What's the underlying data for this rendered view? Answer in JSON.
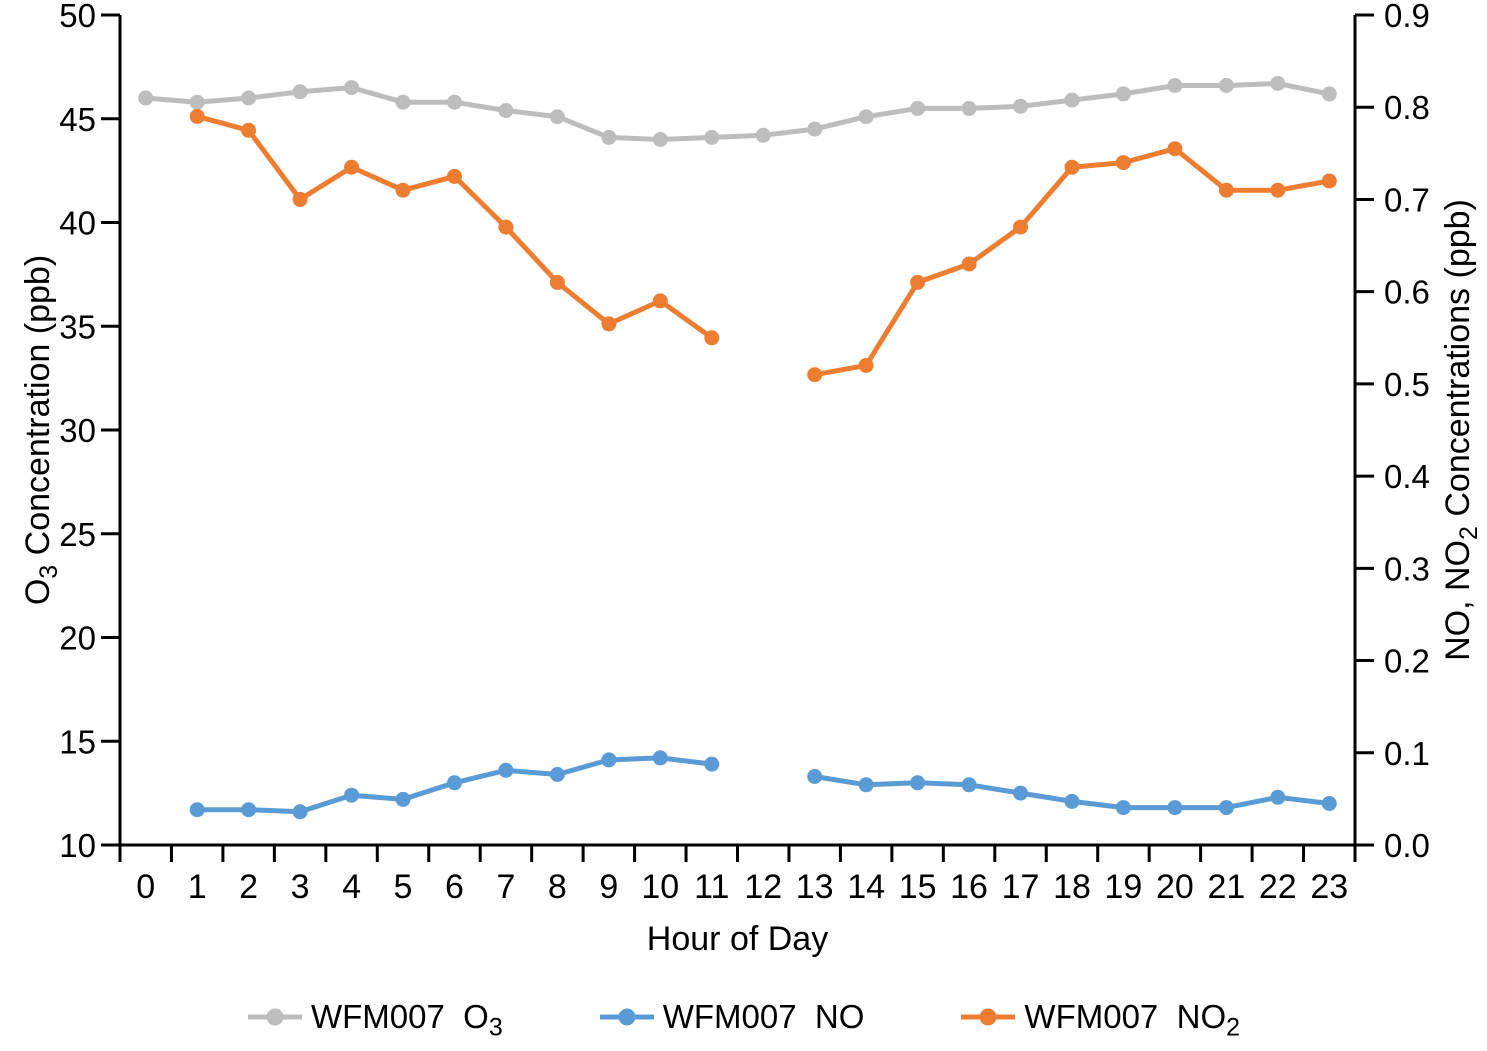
{
  "chart_data": {
    "type": "line",
    "title": "",
    "xlabel": "Hour of Day",
    "ylabel_left": {
      "pre": "O",
      "sub": "3",
      "post": " Concentration (ppb)"
    },
    "ylabel_right": {
      "pre": "NO, NO",
      "sub": "2",
      "post": " Concentrations (ppb)"
    },
    "x_categories": [
      "0",
      "1",
      "2",
      "3",
      "4",
      "5",
      "6",
      "7",
      "8",
      "9",
      "10",
      "11",
      "12",
      "13",
      "14",
      "15",
      "16",
      "17",
      "18",
      "19",
      "20",
      "21",
      "22",
      "23"
    ],
    "axes": {
      "left": {
        "min": 10,
        "max": 50,
        "ticks": [
          "10",
          "15",
          "20",
          "25",
          "30",
          "35",
          "40",
          "45",
          "50"
        ]
      },
      "right": {
        "min": 0,
        "max": 0.9,
        "ticks": [
          "0.0",
          "0.1",
          "0.2",
          "0.3",
          "0.4",
          "0.5",
          "0.6",
          "0.7",
          "0.8",
          "0.9"
        ]
      },
      "x_gridlines": false,
      "note": "NO and NO2 series have a data gap at hour 12"
    },
    "legend_position": "bottom",
    "series": [
      {
        "slug": "wfm007-o3",
        "label": {
          "pre": "WFM007  O",
          "sub": "3",
          "post": ""
        },
        "axis": "left",
        "color": "#BDBDBD",
        "points": [
          [
            0,
            46.0
          ],
          [
            1,
            45.8
          ],
          [
            2,
            46.0
          ],
          [
            3,
            46.3
          ],
          [
            4,
            46.5
          ],
          [
            5,
            45.8
          ],
          [
            6,
            45.8
          ],
          [
            7,
            45.4
          ],
          [
            8,
            45.1
          ],
          [
            9,
            44.1
          ],
          [
            10,
            44.0
          ],
          [
            11,
            44.1
          ],
          [
            12,
            44.2
          ],
          [
            13,
            44.5
          ],
          [
            14,
            45.1
          ],
          [
            15,
            45.5
          ],
          [
            16,
            45.5
          ],
          [
            17,
            45.6
          ],
          [
            18,
            45.9
          ],
          [
            19,
            46.2
          ],
          [
            20,
            46.6
          ],
          [
            21,
            46.6
          ],
          [
            22,
            46.7
          ],
          [
            23,
            46.2
          ]
        ]
      },
      {
        "slug": "wfm007-no",
        "label": {
          "pre": "WFM007  NO",
          "sub": "",
          "post": ""
        },
        "axis": "left",
        "color": "#5B9BD5",
        "points": [
          [
            1,
            11.7
          ],
          [
            2,
            11.7
          ],
          [
            3,
            11.6
          ],
          [
            4,
            12.4
          ],
          [
            5,
            12.2
          ],
          [
            6,
            13.0
          ],
          [
            7,
            13.6
          ],
          [
            8,
            13.4
          ],
          [
            9,
            14.1
          ],
          [
            10,
            14.2
          ],
          [
            11,
            13.9
          ],
          [
            13,
            13.3
          ],
          [
            14,
            12.9
          ],
          [
            15,
            13.0
          ],
          [
            16,
            12.9
          ],
          [
            17,
            12.5
          ],
          [
            18,
            12.1
          ],
          [
            19,
            11.8
          ],
          [
            20,
            11.8
          ],
          [
            21,
            11.8
          ],
          [
            22,
            12.3
          ],
          [
            23,
            12.0
          ]
        ]
      },
      {
        "slug": "wfm007-no2",
        "label": {
          "pre": "WFM007  NO",
          "sub": "2",
          "post": ""
        },
        "axis": "right",
        "color": "#ED7D31",
        "points": [
          [
            1,
            0.79
          ],
          [
            2,
            0.775
          ],
          [
            3,
            0.7
          ],
          [
            4,
            0.735
          ],
          [
            5,
            0.71
          ],
          [
            6,
            0.725
          ],
          [
            7,
            0.67
          ],
          [
            8,
            0.61
          ],
          [
            9,
            0.565
          ],
          [
            10,
            0.59
          ],
          [
            11,
            0.55
          ],
          [
            13,
            0.51
          ],
          [
            14,
            0.52
          ],
          [
            15,
            0.61
          ],
          [
            16,
            0.63
          ],
          [
            17,
            0.67
          ],
          [
            18,
            0.735
          ],
          [
            19,
            0.74
          ],
          [
            20,
            0.755
          ],
          [
            21,
            0.71
          ],
          [
            22,
            0.71
          ],
          [
            23,
            0.72
          ]
        ]
      }
    ]
  }
}
